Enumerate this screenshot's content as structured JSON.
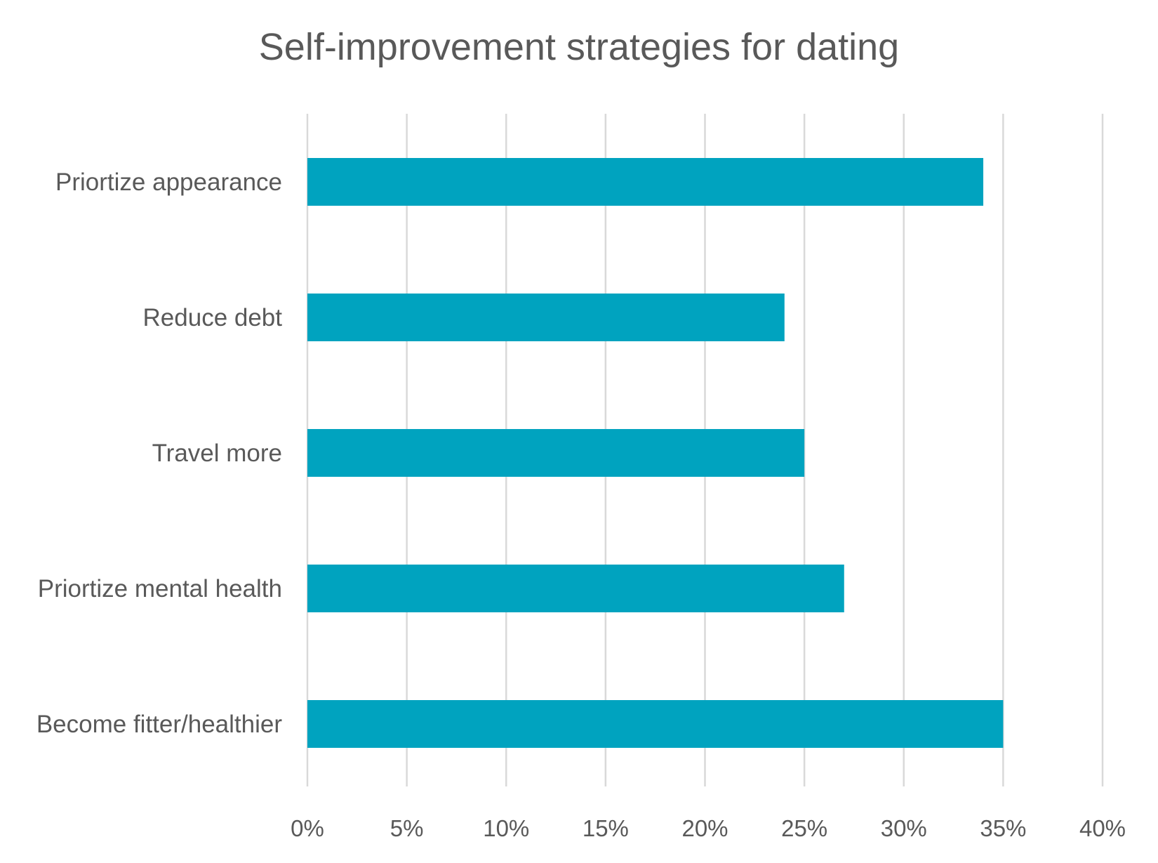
{
  "chart_data": {
    "type": "bar",
    "orientation": "horizontal",
    "title": "Self-improvement strategies for dating",
    "categories": [
      "Priortize appearance",
      "Reduce debt",
      "Travel more",
      "Priortize mental health",
      "Become fitter/healthier"
    ],
    "values": [
      34,
      24,
      25,
      27,
      35
    ],
    "value_unit": "%",
    "xlim": [
      0,
      40
    ],
    "x_ticks": [
      0,
      5,
      10,
      15,
      20,
      25,
      30,
      35,
      40
    ],
    "x_tick_labels": [
      "0%",
      "5%",
      "10%",
      "15%",
      "20%",
      "25%",
      "30%",
      "35%",
      "40%"
    ],
    "xlabel": "",
    "ylabel": "",
    "grid": true,
    "legend": "none"
  },
  "colors": {
    "bar": "#00A3BF",
    "grid": "#D9D9D9",
    "text": "#595959"
  }
}
